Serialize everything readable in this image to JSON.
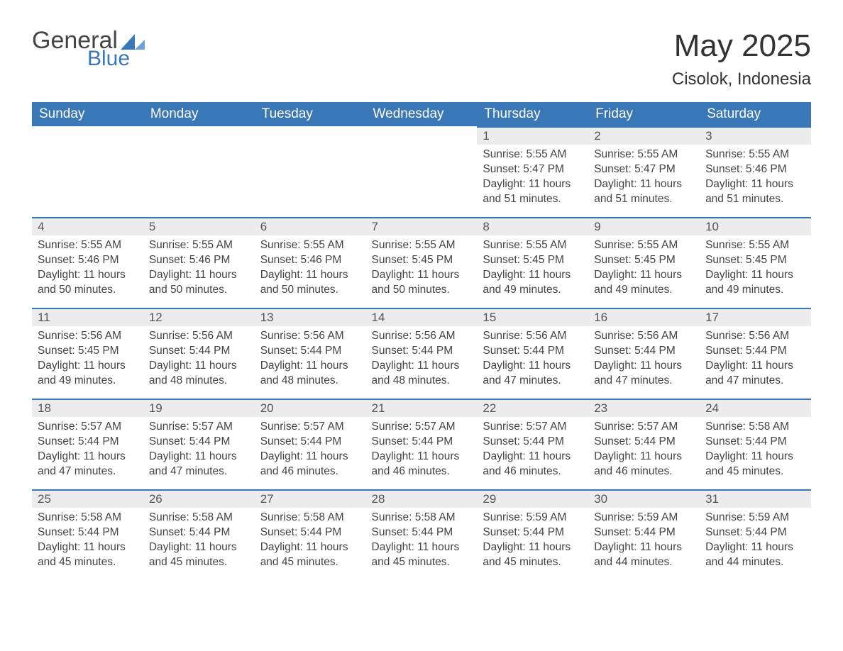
{
  "logo": {
    "text1": "General",
    "text2": "Blue",
    "accent_color": "#3a77b7"
  },
  "title": "May 2025",
  "location": "Cisolok, Indonesia",
  "colors": {
    "header_bg": "#3a77b7",
    "header_text": "#ffffff",
    "daynum_bg": "#ececec",
    "border_top": "#3a77b7",
    "body_text": "#444444"
  },
  "day_headers": [
    "Sunday",
    "Monday",
    "Tuesday",
    "Wednesday",
    "Thursday",
    "Friday",
    "Saturday"
  ],
  "weeks": [
    [
      null,
      null,
      null,
      null,
      {
        "n": "1",
        "sr": "5:55 AM",
        "ss": "5:47 PM",
        "dl": "11 hours and 51 minutes."
      },
      {
        "n": "2",
        "sr": "5:55 AM",
        "ss": "5:47 PM",
        "dl": "11 hours and 51 minutes."
      },
      {
        "n": "3",
        "sr": "5:55 AM",
        "ss": "5:46 PM",
        "dl": "11 hours and 51 minutes."
      }
    ],
    [
      {
        "n": "4",
        "sr": "5:55 AM",
        "ss": "5:46 PM",
        "dl": "11 hours and 50 minutes."
      },
      {
        "n": "5",
        "sr": "5:55 AM",
        "ss": "5:46 PM",
        "dl": "11 hours and 50 minutes."
      },
      {
        "n": "6",
        "sr": "5:55 AM",
        "ss": "5:46 PM",
        "dl": "11 hours and 50 minutes."
      },
      {
        "n": "7",
        "sr": "5:55 AM",
        "ss": "5:45 PM",
        "dl": "11 hours and 50 minutes."
      },
      {
        "n": "8",
        "sr": "5:55 AM",
        "ss": "5:45 PM",
        "dl": "11 hours and 49 minutes."
      },
      {
        "n": "9",
        "sr": "5:55 AM",
        "ss": "5:45 PM",
        "dl": "11 hours and 49 minutes."
      },
      {
        "n": "10",
        "sr": "5:55 AM",
        "ss": "5:45 PM",
        "dl": "11 hours and 49 minutes."
      }
    ],
    [
      {
        "n": "11",
        "sr": "5:56 AM",
        "ss": "5:45 PM",
        "dl": "11 hours and 49 minutes."
      },
      {
        "n": "12",
        "sr": "5:56 AM",
        "ss": "5:44 PM",
        "dl": "11 hours and 48 minutes."
      },
      {
        "n": "13",
        "sr": "5:56 AM",
        "ss": "5:44 PM",
        "dl": "11 hours and 48 minutes."
      },
      {
        "n": "14",
        "sr": "5:56 AM",
        "ss": "5:44 PM",
        "dl": "11 hours and 48 minutes."
      },
      {
        "n": "15",
        "sr": "5:56 AM",
        "ss": "5:44 PM",
        "dl": "11 hours and 47 minutes."
      },
      {
        "n": "16",
        "sr": "5:56 AM",
        "ss": "5:44 PM",
        "dl": "11 hours and 47 minutes."
      },
      {
        "n": "17",
        "sr": "5:56 AM",
        "ss": "5:44 PM",
        "dl": "11 hours and 47 minutes."
      }
    ],
    [
      {
        "n": "18",
        "sr": "5:57 AM",
        "ss": "5:44 PM",
        "dl": "11 hours and 47 minutes."
      },
      {
        "n": "19",
        "sr": "5:57 AM",
        "ss": "5:44 PM",
        "dl": "11 hours and 47 minutes."
      },
      {
        "n": "20",
        "sr": "5:57 AM",
        "ss": "5:44 PM",
        "dl": "11 hours and 46 minutes."
      },
      {
        "n": "21",
        "sr": "5:57 AM",
        "ss": "5:44 PM",
        "dl": "11 hours and 46 minutes."
      },
      {
        "n": "22",
        "sr": "5:57 AM",
        "ss": "5:44 PM",
        "dl": "11 hours and 46 minutes."
      },
      {
        "n": "23",
        "sr": "5:57 AM",
        "ss": "5:44 PM",
        "dl": "11 hours and 46 minutes."
      },
      {
        "n": "24",
        "sr": "5:58 AM",
        "ss": "5:44 PM",
        "dl": "11 hours and 45 minutes."
      }
    ],
    [
      {
        "n": "25",
        "sr": "5:58 AM",
        "ss": "5:44 PM",
        "dl": "11 hours and 45 minutes."
      },
      {
        "n": "26",
        "sr": "5:58 AM",
        "ss": "5:44 PM",
        "dl": "11 hours and 45 minutes."
      },
      {
        "n": "27",
        "sr": "5:58 AM",
        "ss": "5:44 PM",
        "dl": "11 hours and 45 minutes."
      },
      {
        "n": "28",
        "sr": "5:58 AM",
        "ss": "5:44 PM",
        "dl": "11 hours and 45 minutes."
      },
      {
        "n": "29",
        "sr": "5:59 AM",
        "ss": "5:44 PM",
        "dl": "11 hours and 45 minutes."
      },
      {
        "n": "30",
        "sr": "5:59 AM",
        "ss": "5:44 PM",
        "dl": "11 hours and 44 minutes."
      },
      {
        "n": "31",
        "sr": "5:59 AM",
        "ss": "5:44 PM",
        "dl": "11 hours and 44 minutes."
      }
    ]
  ],
  "labels": {
    "sunrise": "Sunrise:",
    "sunset": "Sunset:",
    "daylight": "Daylight:"
  }
}
